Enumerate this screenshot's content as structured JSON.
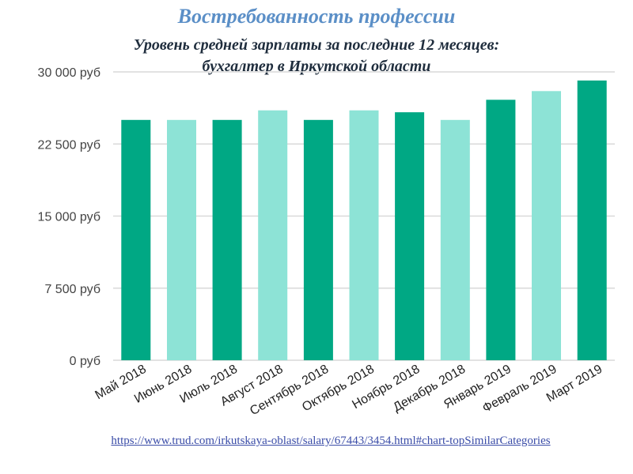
{
  "header": {
    "title": "Востребованность профессии",
    "subtitle_line1": "Уровень средней зарплаты за последние 12 месяцев:",
    "subtitle_line2": "бухгалтер в Иркутской области"
  },
  "footer": {
    "source_url": "https://www.trud.com/irkutskaya-oblast/salary/67443/3454.html#chart-topSimilarCategories"
  },
  "colors": {
    "dark": "#00a884",
    "light": "#8de3d6",
    "grid": "#d9d9d9"
  },
  "chart_data": {
    "type": "bar",
    "categories": [
      "Май 2018",
      "Июнь 2018",
      "Июль 2018",
      "Август 2018",
      "Сентябрь 2018",
      "Октябрь 2018",
      "Ноябрь 2018",
      "Декабрь 2018",
      "Январь 2019",
      "Февраль 2019",
      "Март 2019"
    ],
    "values": [
      25000,
      25000,
      25000,
      26000,
      25000,
      26000,
      25800,
      25000,
      27100,
      28000,
      29100
    ],
    "bar_colors": [
      "dark",
      "light",
      "dark",
      "light",
      "dark",
      "light",
      "dark",
      "light",
      "dark",
      "light",
      "dark"
    ],
    "yticks": [
      0,
      7500,
      15000,
      22500,
      30000
    ],
    "ytick_labels": [
      "0 руб",
      "7 500 руб",
      "15 000 руб",
      "22 500 руб",
      "30 000 руб"
    ],
    "ylim": [
      0,
      30000
    ],
    "grid": true
  }
}
